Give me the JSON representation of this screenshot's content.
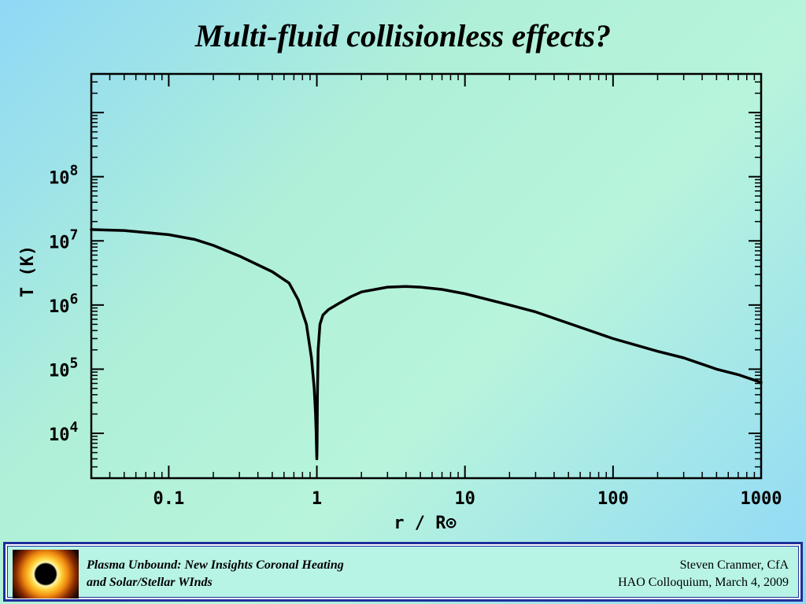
{
  "slide": {
    "title": "Multi-fluid collisionless effects?"
  },
  "footer": {
    "left_line1": "Plasma Unbound:  New Insights Coronal Heating",
    "left_line2": "and Solar/Stellar WInds",
    "right_line1": "Steven Cranmer,  CfA",
    "right_line2": "HAO Colloquium, March 4, 2009"
  },
  "chart_data": {
    "type": "line",
    "xlabel": "r / R⊙",
    "ylabel": "T (K)",
    "xscale": "log",
    "yscale": "log",
    "xlim": [
      0.03,
      1000
    ],
    "ylim": [
      2000,
      4000000000
    ],
    "x_ticks": [
      {
        "value": 0.1,
        "label": "0.1"
      },
      {
        "value": 1,
        "label": "1"
      },
      {
        "value": 10,
        "label": "10"
      },
      {
        "value": 100,
        "label": "100"
      },
      {
        "value": 1000,
        "label": "1000"
      }
    ],
    "y_ticks": [
      {
        "value": 10000,
        "base": "10",
        "exp": "4"
      },
      {
        "value": 100000,
        "base": "10",
        "exp": "5"
      },
      {
        "value": 1000000,
        "base": "10",
        "exp": "6"
      },
      {
        "value": 10000000,
        "base": "10",
        "exp": "7"
      },
      {
        "value": 100000000,
        "base": "10",
        "exp": "8"
      }
    ],
    "grid": false,
    "line_color": "#000000",
    "series": [
      {
        "x": [
          0.03,
          0.05,
          0.1,
          0.15,
          0.2,
          0.3,
          0.5,
          0.65,
          0.75,
          0.85,
          0.92,
          0.96,
          0.98,
          0.99,
          0.995,
          0.998,
          1.0,
          1.002,
          1.005,
          1.01,
          1.02,
          1.05,
          1.1,
          1.2,
          1.4,
          1.7,
          2,
          3,
          4,
          5,
          7,
          10,
          20,
          30,
          50,
          100,
          200,
          300,
          500,
          700,
          1000
        ],
        "y": [
          15000000,
          14500000,
          12500000,
          10500000,
          8500000,
          5800000,
          3300000,
          2200000,
          1200000,
          500000,
          150000,
          50000,
          20000,
          10000,
          6000,
          4500,
          4000,
          5000,
          8000,
          40000,
          200000,
          500000,
          700000,
          850000,
          1050000,
          1350000,
          1600000,
          1900000,
          1950000,
          1900000,
          1750000,
          1500000,
          1000000,
          780000,
          520000,
          300000,
          190000,
          150000,
          100000,
          82000,
          62000
        ]
      }
    ]
  }
}
